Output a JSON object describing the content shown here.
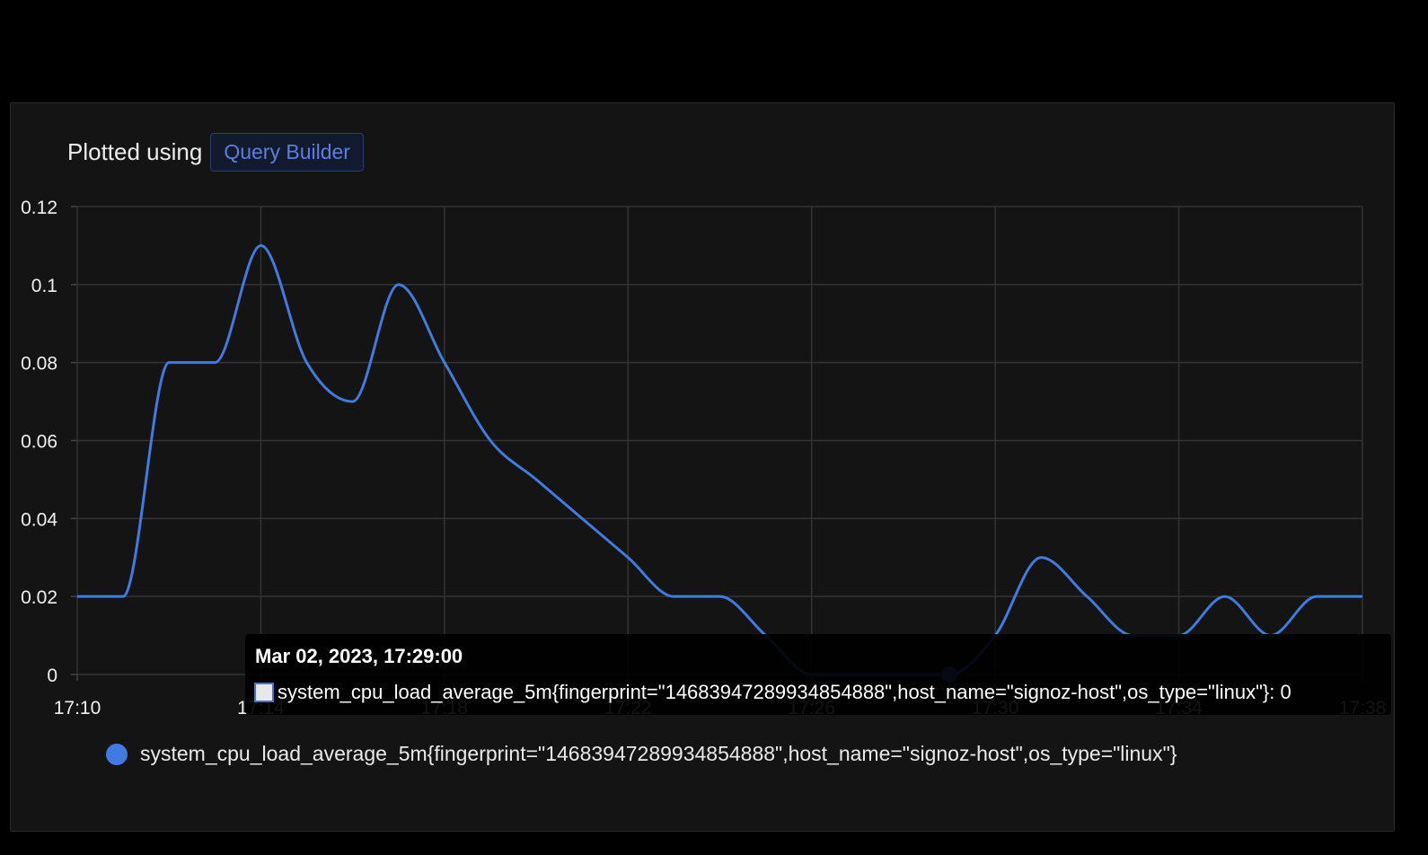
{
  "header": {
    "label": "Plotted using",
    "query_builder": "Query Builder"
  },
  "tooltip": {
    "time": "Mar 02, 2023, 17:29:00",
    "series": "system_cpu_load_average_5m{fingerprint=\"14683947289934854888\",host_name=\"signoz-host\",os_type=\"linux\"}",
    "value_text": ": 0"
  },
  "legend": {
    "label": "system_cpu_load_average_5m{fingerprint=\"14683947289934854888\",host_name=\"signoz-host\",os_type=\"linux\"}",
    "color": "#3f7be0"
  },
  "chart_data": {
    "type": "line",
    "x_tick_labels": [
      "17:10",
      "17:14",
      "17:18",
      "17:22",
      "17:26",
      "17:30",
      "17:34",
      "17:38"
    ],
    "x_unit": "minutes since 17:10",
    "y_tick_labels": [
      "0.12",
      "0.1",
      "0.08",
      "0.06",
      "0.04",
      "0.02",
      "0"
    ],
    "ylim": [
      0,
      0.12
    ],
    "xlim": [
      "17:10",
      "17:38"
    ],
    "grid": true,
    "series": [
      {
        "name": "system_cpu_load_average_5m{fingerprint=\"14683947289934854888\",host_name=\"signoz-host\",os_type=\"linux\"}",
        "color": "#3f7be0",
        "x": [
          "17:10",
          "17:11",
          "17:12",
          "17:13",
          "17:14",
          "17:15",
          "17:16",
          "17:17",
          "17:18",
          "17:19",
          "17:20",
          "17:21",
          "17:22",
          "17:23",
          "17:24",
          "17:25",
          "17:26",
          "17:27",
          "17:28",
          "17:29",
          "17:30",
          "17:31",
          "17:32",
          "17:33",
          "17:34",
          "17:35",
          "17:36",
          "17:37",
          "17:38"
        ],
        "values": [
          0.02,
          0.02,
          0.08,
          0.08,
          0.11,
          0.08,
          0.07,
          0.1,
          0.08,
          0.06,
          0.05,
          0.04,
          0.03,
          0.02,
          0.02,
          0.01,
          0.0,
          0.0,
          0.0,
          0.0,
          0.01,
          0.03,
          0.02,
          0.01,
          0.01,
          0.02,
          0.01,
          0.02,
          0.02
        ]
      }
    ]
  }
}
